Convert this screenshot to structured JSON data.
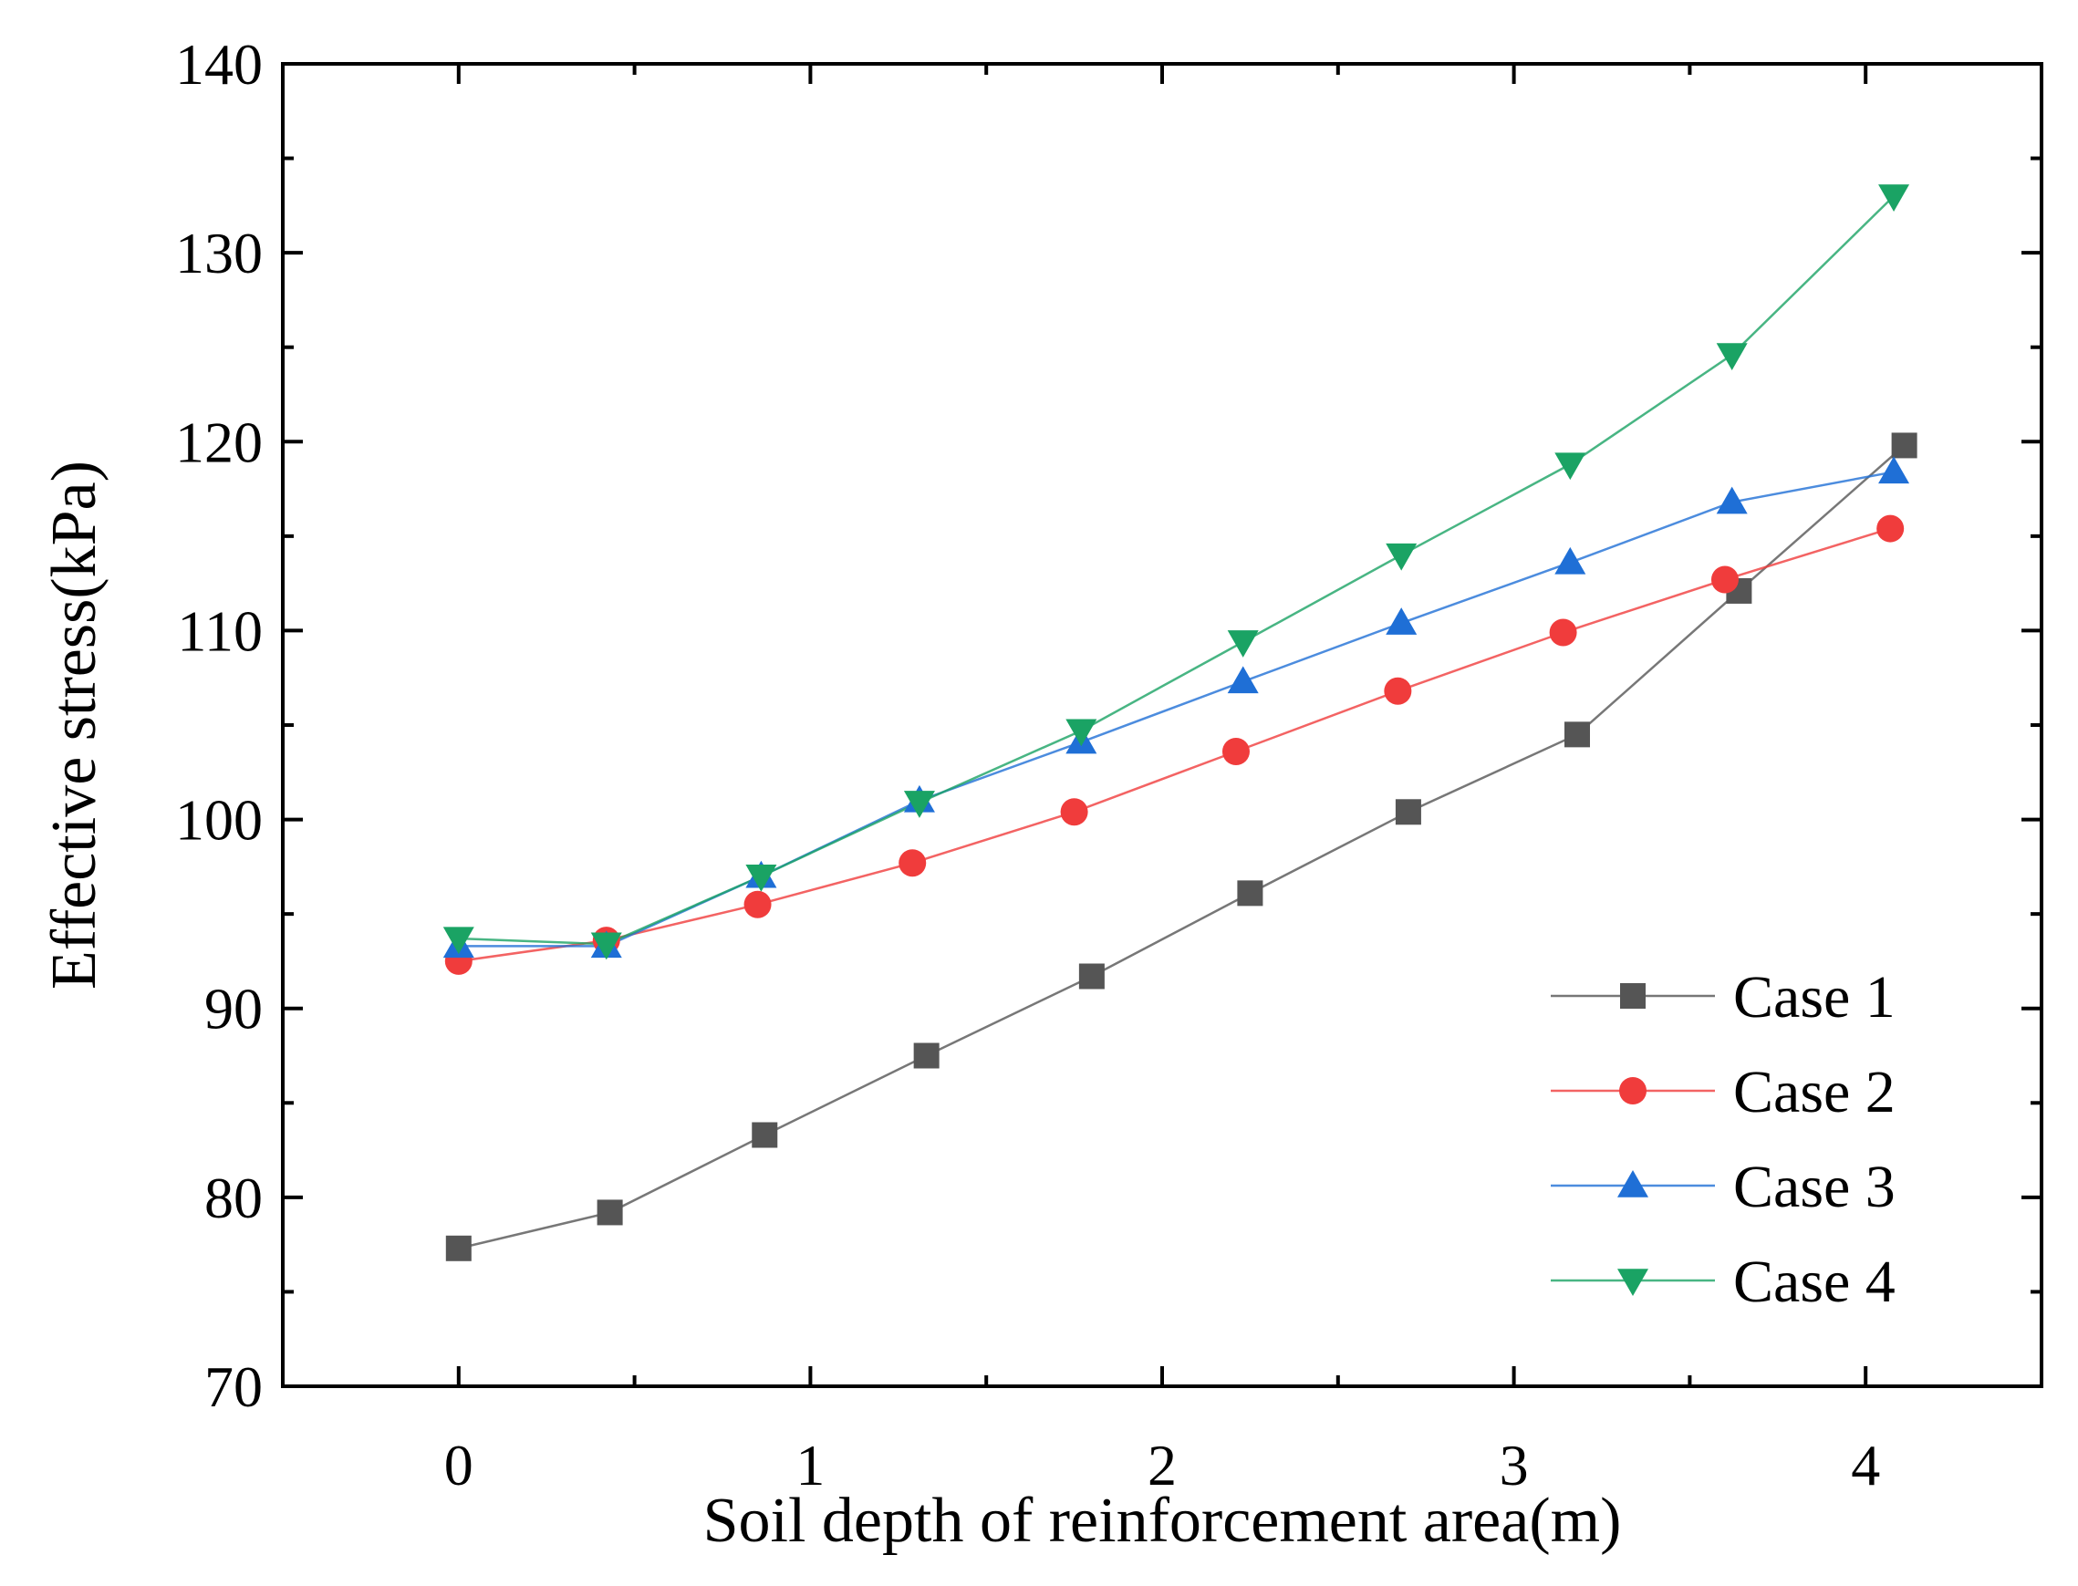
{
  "chart_data": {
    "type": "line",
    "title": "",
    "xlabel": "Soil depth of reinforcement area(m)",
    "ylabel": "Effective stress(kPa)",
    "xlim": [
      -0.5,
      4.5
    ],
    "ylim": [
      70,
      140
    ],
    "xticks": [
      0,
      1,
      2,
      3,
      4
    ],
    "yticks": [
      70,
      80,
      90,
      100,
      110,
      120,
      130,
      140
    ],
    "grid": false,
    "legend_position": "bottom-right",
    "series": [
      {
        "name": "Case 1",
        "color": "#555555",
        "marker": "square",
        "x": [
          0,
          0.43,
          0.87,
          1.33,
          1.8,
          2.25,
          2.7,
          3.18,
          3.64,
          4.11
        ],
        "y": [
          77.3,
          79.2,
          83.3,
          87.5,
          91.7,
          96.1,
          100.4,
          104.5,
          112.1,
          119.8
        ]
      },
      {
        "name": "Case 2",
        "color": "#f03c3c",
        "marker": "circle",
        "x": [
          0,
          0.42,
          0.85,
          1.29,
          1.75,
          2.21,
          2.67,
          3.14,
          3.6,
          4.07
        ],
        "y": [
          92.5,
          93.6,
          95.5,
          97.7,
          100.4,
          103.6,
          106.8,
          109.9,
          112.7,
          115.4
        ]
      },
      {
        "name": "Case 3",
        "color": "#1f6fd6",
        "marker": "triangle-up",
        "x": [
          0,
          0.42,
          0.86,
          1.31,
          1.77,
          2.23,
          2.68,
          3.16,
          3.62,
          4.08
        ],
        "y": [
          93.3,
          93.3,
          97.0,
          101.0,
          104.1,
          107.3,
          110.4,
          113.6,
          116.8,
          118.4
        ]
      },
      {
        "name": "Case 4",
        "color": "#1aa364",
        "marker": "triangle-down",
        "x": [
          0,
          0.42,
          0.86,
          1.31,
          1.77,
          2.23,
          2.68,
          3.16,
          3.62,
          4.08
        ],
        "y": [
          93.7,
          93.4,
          97.0,
          100.9,
          104.7,
          109.4,
          114.0,
          118.8,
          124.6,
          133.0
        ]
      }
    ]
  }
}
